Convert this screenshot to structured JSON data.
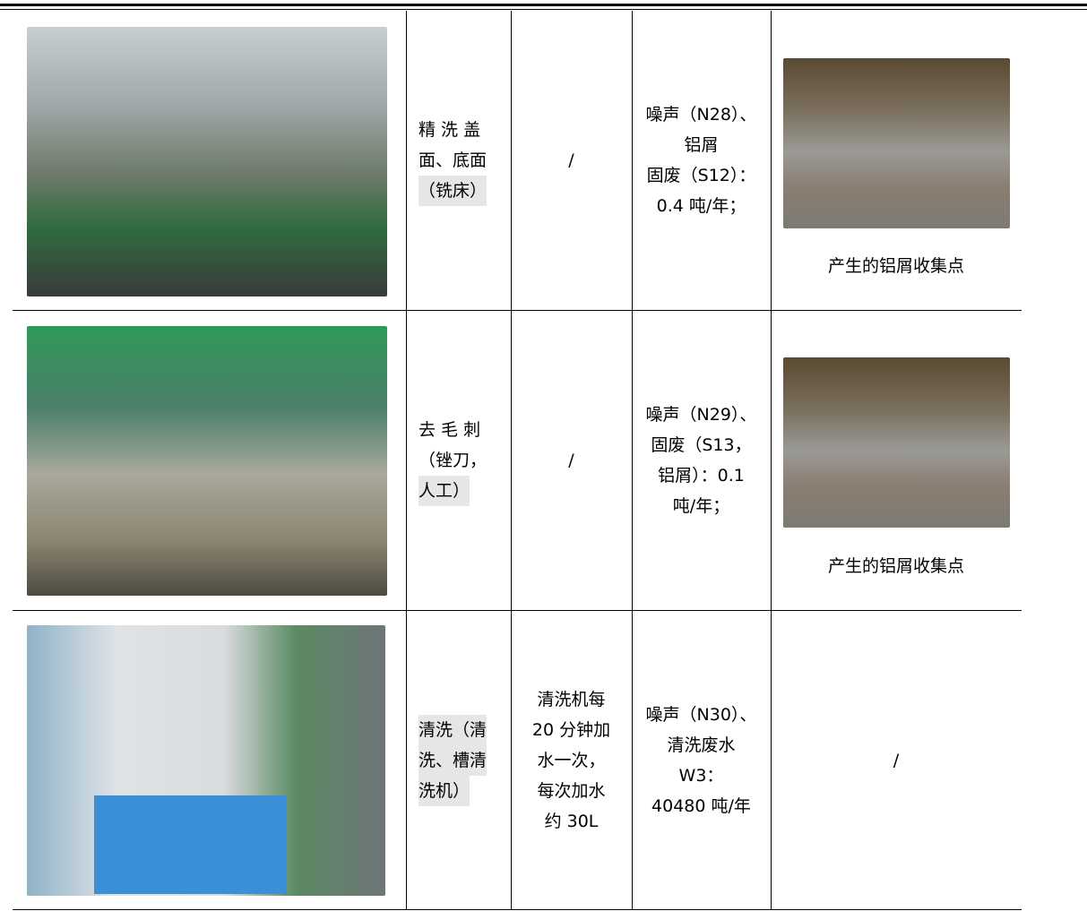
{
  "table": {
    "rows": [
      {
        "process": [
          "精 洗 盖",
          "面、底面",
          "（铣床）"
        ],
        "water": [
          "/"
        ],
        "pollution": [
          "噪声（N28）、",
          "铝屑",
          "固废（S12）：",
          "0.4 吨/年；"
        ],
        "photo_caption": "产生的铝屑收集点"
      },
      {
        "process": [
          "去 毛 刺",
          "（锉刀，",
          "人工）"
        ],
        "water": [
          "/"
        ],
        "pollution": [
          "噪声（N29）、",
          "固废（S13，",
          "铝屑）：0.1",
          "吨/年；"
        ],
        "photo_caption": "产生的铝屑收集点"
      },
      {
        "process": [
          "清洗（清",
          "洗、槽清",
          "洗机）"
        ],
        "water": [
          "清洗机每",
          "20 分钟加",
          "水一次，",
          "每次加水",
          "约 30L"
        ],
        "pollution": [
          "噪声（N30）、",
          "清洗废水",
          "W3：",
          "40480 吨/年"
        ],
        "photo_caption": "/"
      }
    ]
  }
}
